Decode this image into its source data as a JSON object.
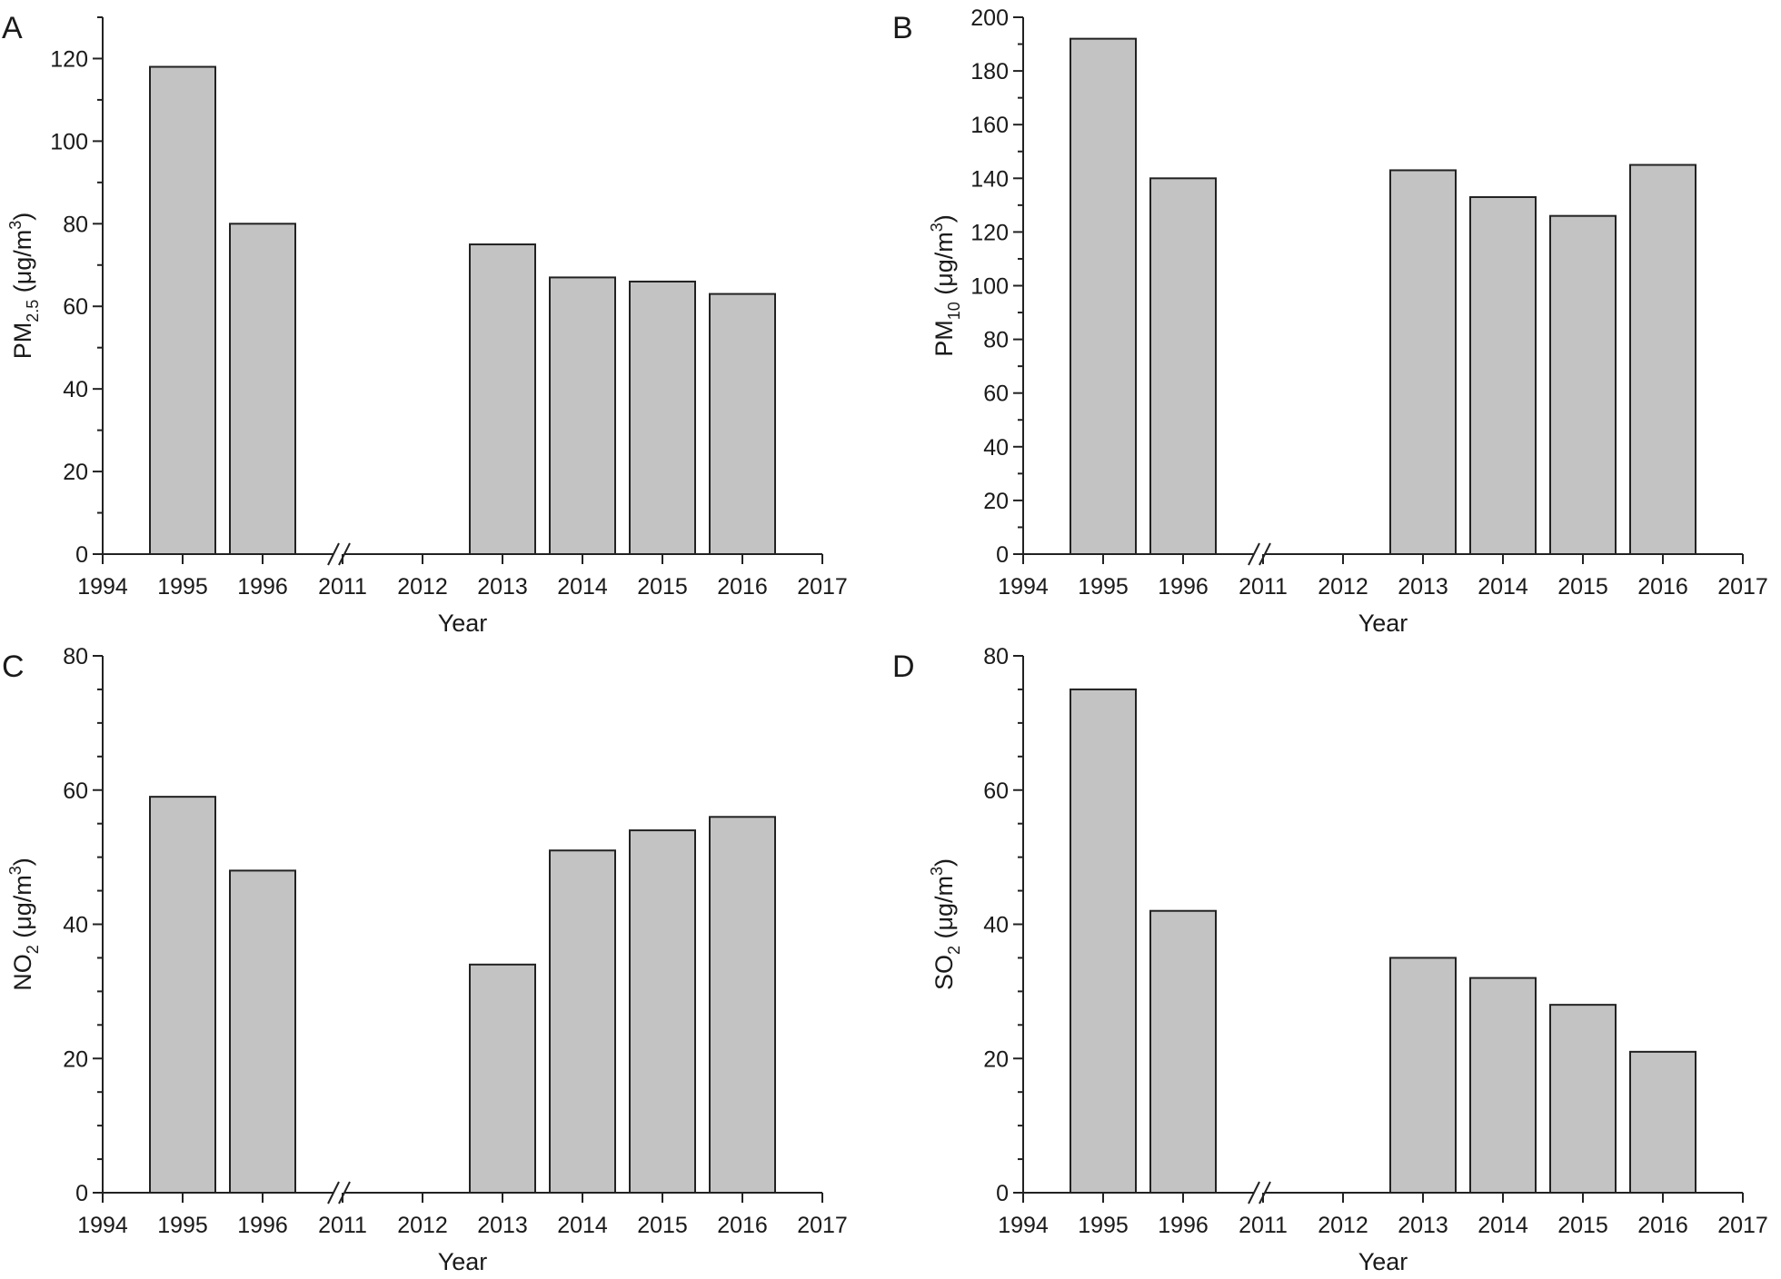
{
  "chart_data": [
    {
      "type": "bar",
      "panel_label": "A",
      "xlabel": "Year",
      "ylabel": {
        "main": "PM",
        "sub": "2.5",
        "unit": " (μg/m",
        "sup": "3",
        "close": ")"
      },
      "x_tick_labels": [
        "1994",
        "1995",
        "1996",
        "2011",
        "2012",
        "2013",
        "2014",
        "2015",
        "2016",
        "2017"
      ],
      "axis_break_after": "1996",
      "categories": [
        "1995",
        "1996",
        "2013",
        "2014",
        "2015",
        "2016"
      ],
      "values": [
        118,
        80,
        75,
        67,
        66,
        63
      ],
      "ylim": [
        0,
        130
      ],
      "y_ticks": [
        0,
        20,
        40,
        60,
        80,
        100,
        120
      ],
      "y_minor_step": 10,
      "bar_color": "#c3c3c3",
      "grid": false
    },
    {
      "type": "bar",
      "panel_label": "B",
      "xlabel": "Year",
      "ylabel": {
        "main": "PM",
        "sub": "10",
        "unit": " (μg/m",
        "sup": "3",
        "close": ")"
      },
      "x_tick_labels": [
        "1994",
        "1995",
        "1996",
        "2011",
        "2012",
        "2013",
        "2014",
        "2015",
        "2016",
        "2017"
      ],
      "axis_break_after": "1996",
      "categories": [
        "1995",
        "1996",
        "2013",
        "2014",
        "2015",
        "2016"
      ],
      "values": [
        192,
        140,
        143,
        133,
        126,
        145
      ],
      "ylim": [
        0,
        200
      ],
      "y_ticks": [
        0,
        20,
        40,
        60,
        80,
        100,
        120,
        140,
        160,
        180,
        200
      ],
      "y_minor_step": 10,
      "bar_color": "#c3c3c3",
      "grid": false
    },
    {
      "type": "bar",
      "panel_label": "C",
      "xlabel": "Year",
      "ylabel": {
        "main": "NO",
        "sub": "2",
        "unit": " (μg/m",
        "sup": "3",
        "close": ")"
      },
      "x_tick_labels": [
        "1994",
        "1995",
        "1996",
        "2011",
        "2012",
        "2013",
        "2014",
        "2015",
        "2016",
        "2017"
      ],
      "axis_break_after": "1996",
      "categories": [
        "1995",
        "1996",
        "2013",
        "2014",
        "2015",
        "2016"
      ],
      "values": [
        59,
        48,
        34,
        51,
        54,
        56
      ],
      "ylim": [
        0,
        80
      ],
      "y_ticks": [
        0,
        20,
        40,
        60,
        80
      ],
      "y_minor_step": 5,
      "bar_color": "#c3c3c3",
      "grid": false
    },
    {
      "type": "bar",
      "panel_label": "D",
      "xlabel": "Year",
      "ylabel": {
        "main": "SO",
        "sub": "2",
        "unit": " (μg/m",
        "sup": "3",
        "close": ")"
      },
      "x_tick_labels": [
        "1994",
        "1995",
        "1996",
        "2011",
        "2012",
        "2013",
        "2014",
        "2015",
        "2016",
        "2017"
      ],
      "axis_break_after": "1996",
      "categories": [
        "1995",
        "1996",
        "2013",
        "2014",
        "2015",
        "2016"
      ],
      "values": [
        75,
        42,
        35,
        32,
        28,
        21
      ],
      "ylim": [
        0,
        80
      ],
      "y_ticks": [
        0,
        20,
        40,
        60,
        80
      ],
      "y_minor_step": 5,
      "bar_color": "#c3c3c3",
      "grid": false
    }
  ]
}
